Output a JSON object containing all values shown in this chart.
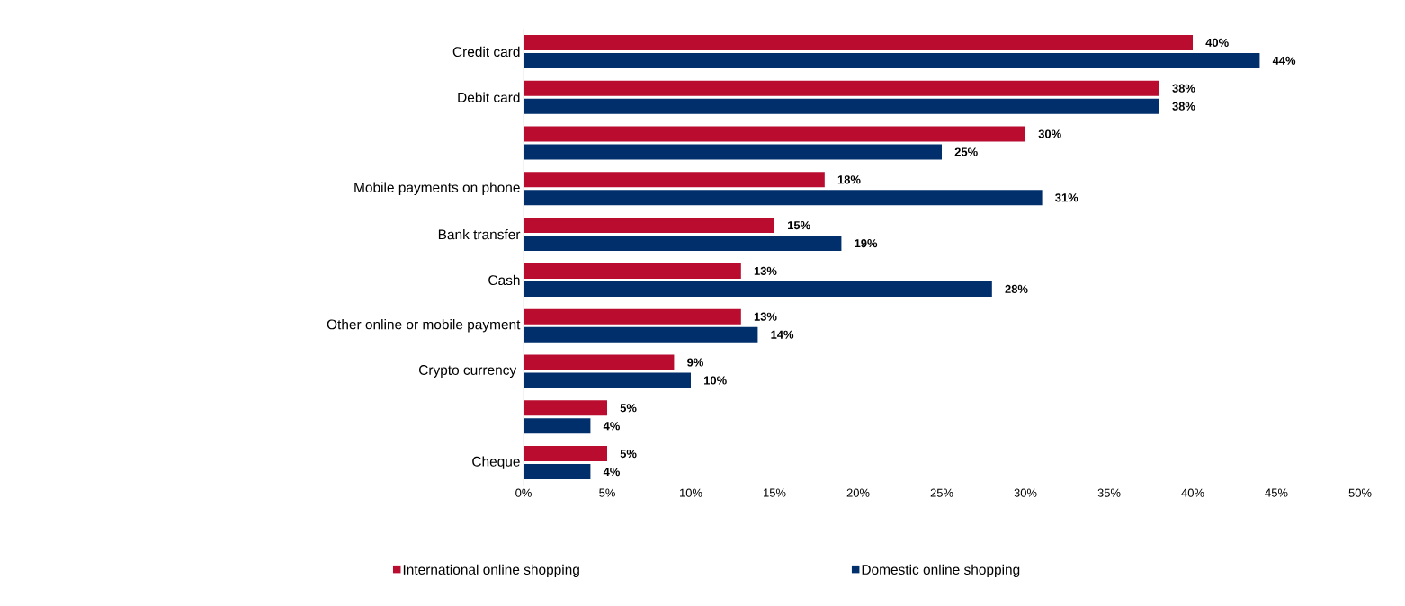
{
  "chart_data": {
    "type": "bar",
    "orientation": "horizontal",
    "categories": [
      "Credit card",
      "Debit card",
      null,
      "Mobile payments on phone",
      "Bank transfer",
      "Cash",
      "Other online or mobile payment",
      "Crypto currency ",
      null,
      "Cheque"
    ],
    "series": [
      {
        "name": "International online shopping",
        "color": "#ba0c2f",
        "values": [
          40,
          38,
          30,
          18,
          15,
          13,
          13,
          9,
          5,
          5
        ],
        "value_labels": [
          "40%",
          "38%",
          "30%",
          "18%",
          "15%",
          "13%",
          "13%",
          "9%",
          "5%",
          "5%"
        ]
      },
      {
        "name": "Domestic online shopping",
        "color": "#002f6c",
        "values": [
          44,
          38,
          25,
          31,
          19,
          28,
          14,
          10,
          4,
          4
        ],
        "value_labels": [
          "44%",
          "38%",
          "25%",
          "31%",
          "19%",
          "28%",
          "14%",
          "10%",
          "4%",
          "4%"
        ]
      }
    ],
    "xlim": [
      0,
      50
    ],
    "xticks": [
      {
        "value": 0,
        "label": "0%"
      },
      {
        "value": 5,
        "label": "5%"
      },
      {
        "value": 10,
        "label": "10%"
      },
      {
        "value": 15,
        "label": "15%"
      },
      {
        "value": 20,
        "label": "20%"
      },
      {
        "value": 25,
        "label": "25%"
      },
      {
        "value": 30,
        "label": "30%"
      },
      {
        "value": 35,
        "label": "35%"
      },
      {
        "value": 40,
        "label": "40%"
      },
      {
        "value": 45,
        "label": "45%"
      },
      {
        "value": 50,
        "label": "50%"
      }
    ],
    "legend": "bottom",
    "grid": false
  }
}
